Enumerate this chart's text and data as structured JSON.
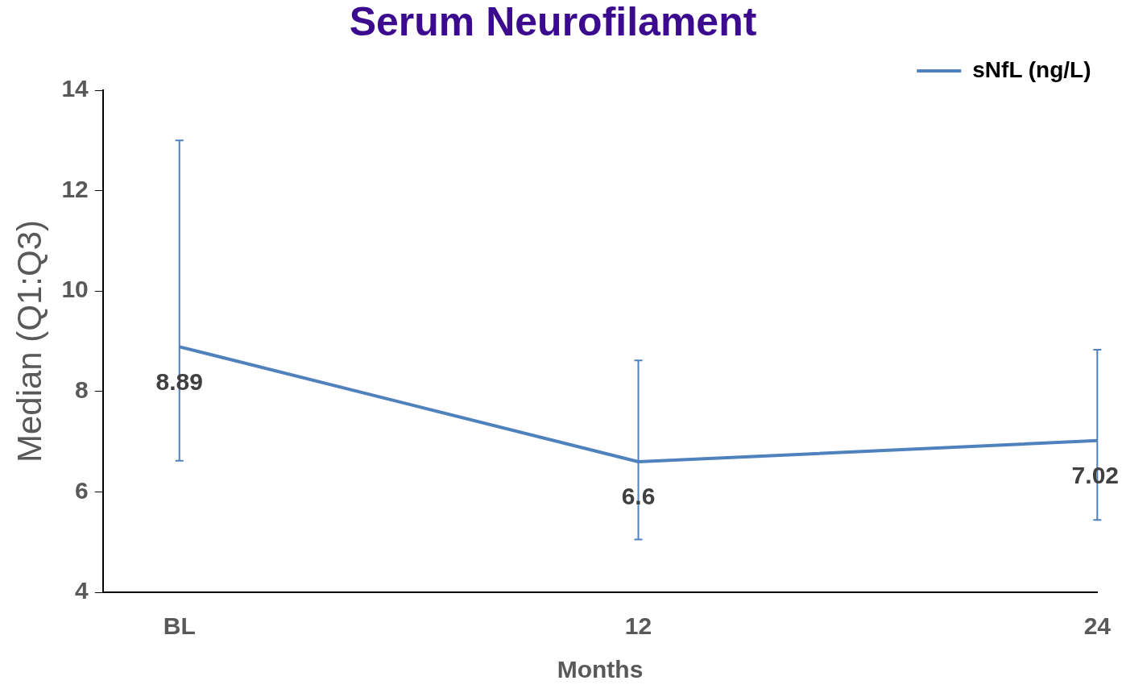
{
  "chart_data": {
    "type": "line",
    "title": "Serum Neurofilament",
    "xlabel": "Months",
    "ylabel": "Median (Q1:Q3)",
    "x": [
      0,
      12,
      24
    ],
    "xlim": [
      -2,
      24
    ],
    "xticks": [
      {
        "value": 0,
        "label": "BL"
      },
      12,
      24
    ],
    "ylim": [
      4,
      14
    ],
    "yticks": [
      4,
      6,
      8,
      10,
      12,
      14
    ],
    "series": [
      {
        "name": "sNfL (ng/L)",
        "color": "#4f81bd",
        "values": [
          8.89,
          6.6,
          7.02
        ],
        "errors": [
          [
            6.62,
            13.0
          ],
          [
            5.05,
            8.62
          ],
          [
            5.44,
            8.83
          ]
        ]
      }
    ],
    "data_labels": true,
    "legend": "top right",
    "grid": false,
    "marker": "none",
    "line_style": "solid"
  }
}
